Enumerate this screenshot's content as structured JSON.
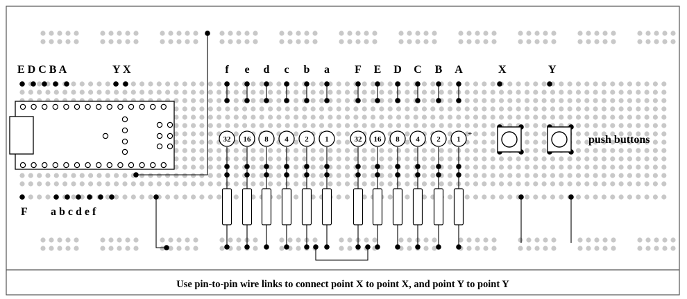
{
  "colors": {
    "frame": "#555555",
    "background": "#ffffff",
    "hole": "#c8c8c8",
    "pin": "#000000",
    "wire": "#000000"
  },
  "labels": {
    "controller_pins_top": "E D C B A",
    "controller_pins_xy": "Y X",
    "controller_pin_f": "F",
    "controller_pins_bottom": "a b c d e f",
    "led_columns": [
      "f",
      "e",
      "d",
      "c",
      "b",
      "a",
      "F",
      "E",
      "D",
      "C",
      "B",
      "A"
    ],
    "button_x": "X",
    "button_y": "Y",
    "push_buttons": "push buttons",
    "plus_sign": "+"
  },
  "led_values": [
    "32",
    "16",
    "8",
    "4",
    "2",
    "1",
    "32",
    "16",
    "8",
    "4",
    "2",
    "1"
  ],
  "caption": "Use pin-to-pin wire links to connect point X to point X, and point Y to point Y"
}
